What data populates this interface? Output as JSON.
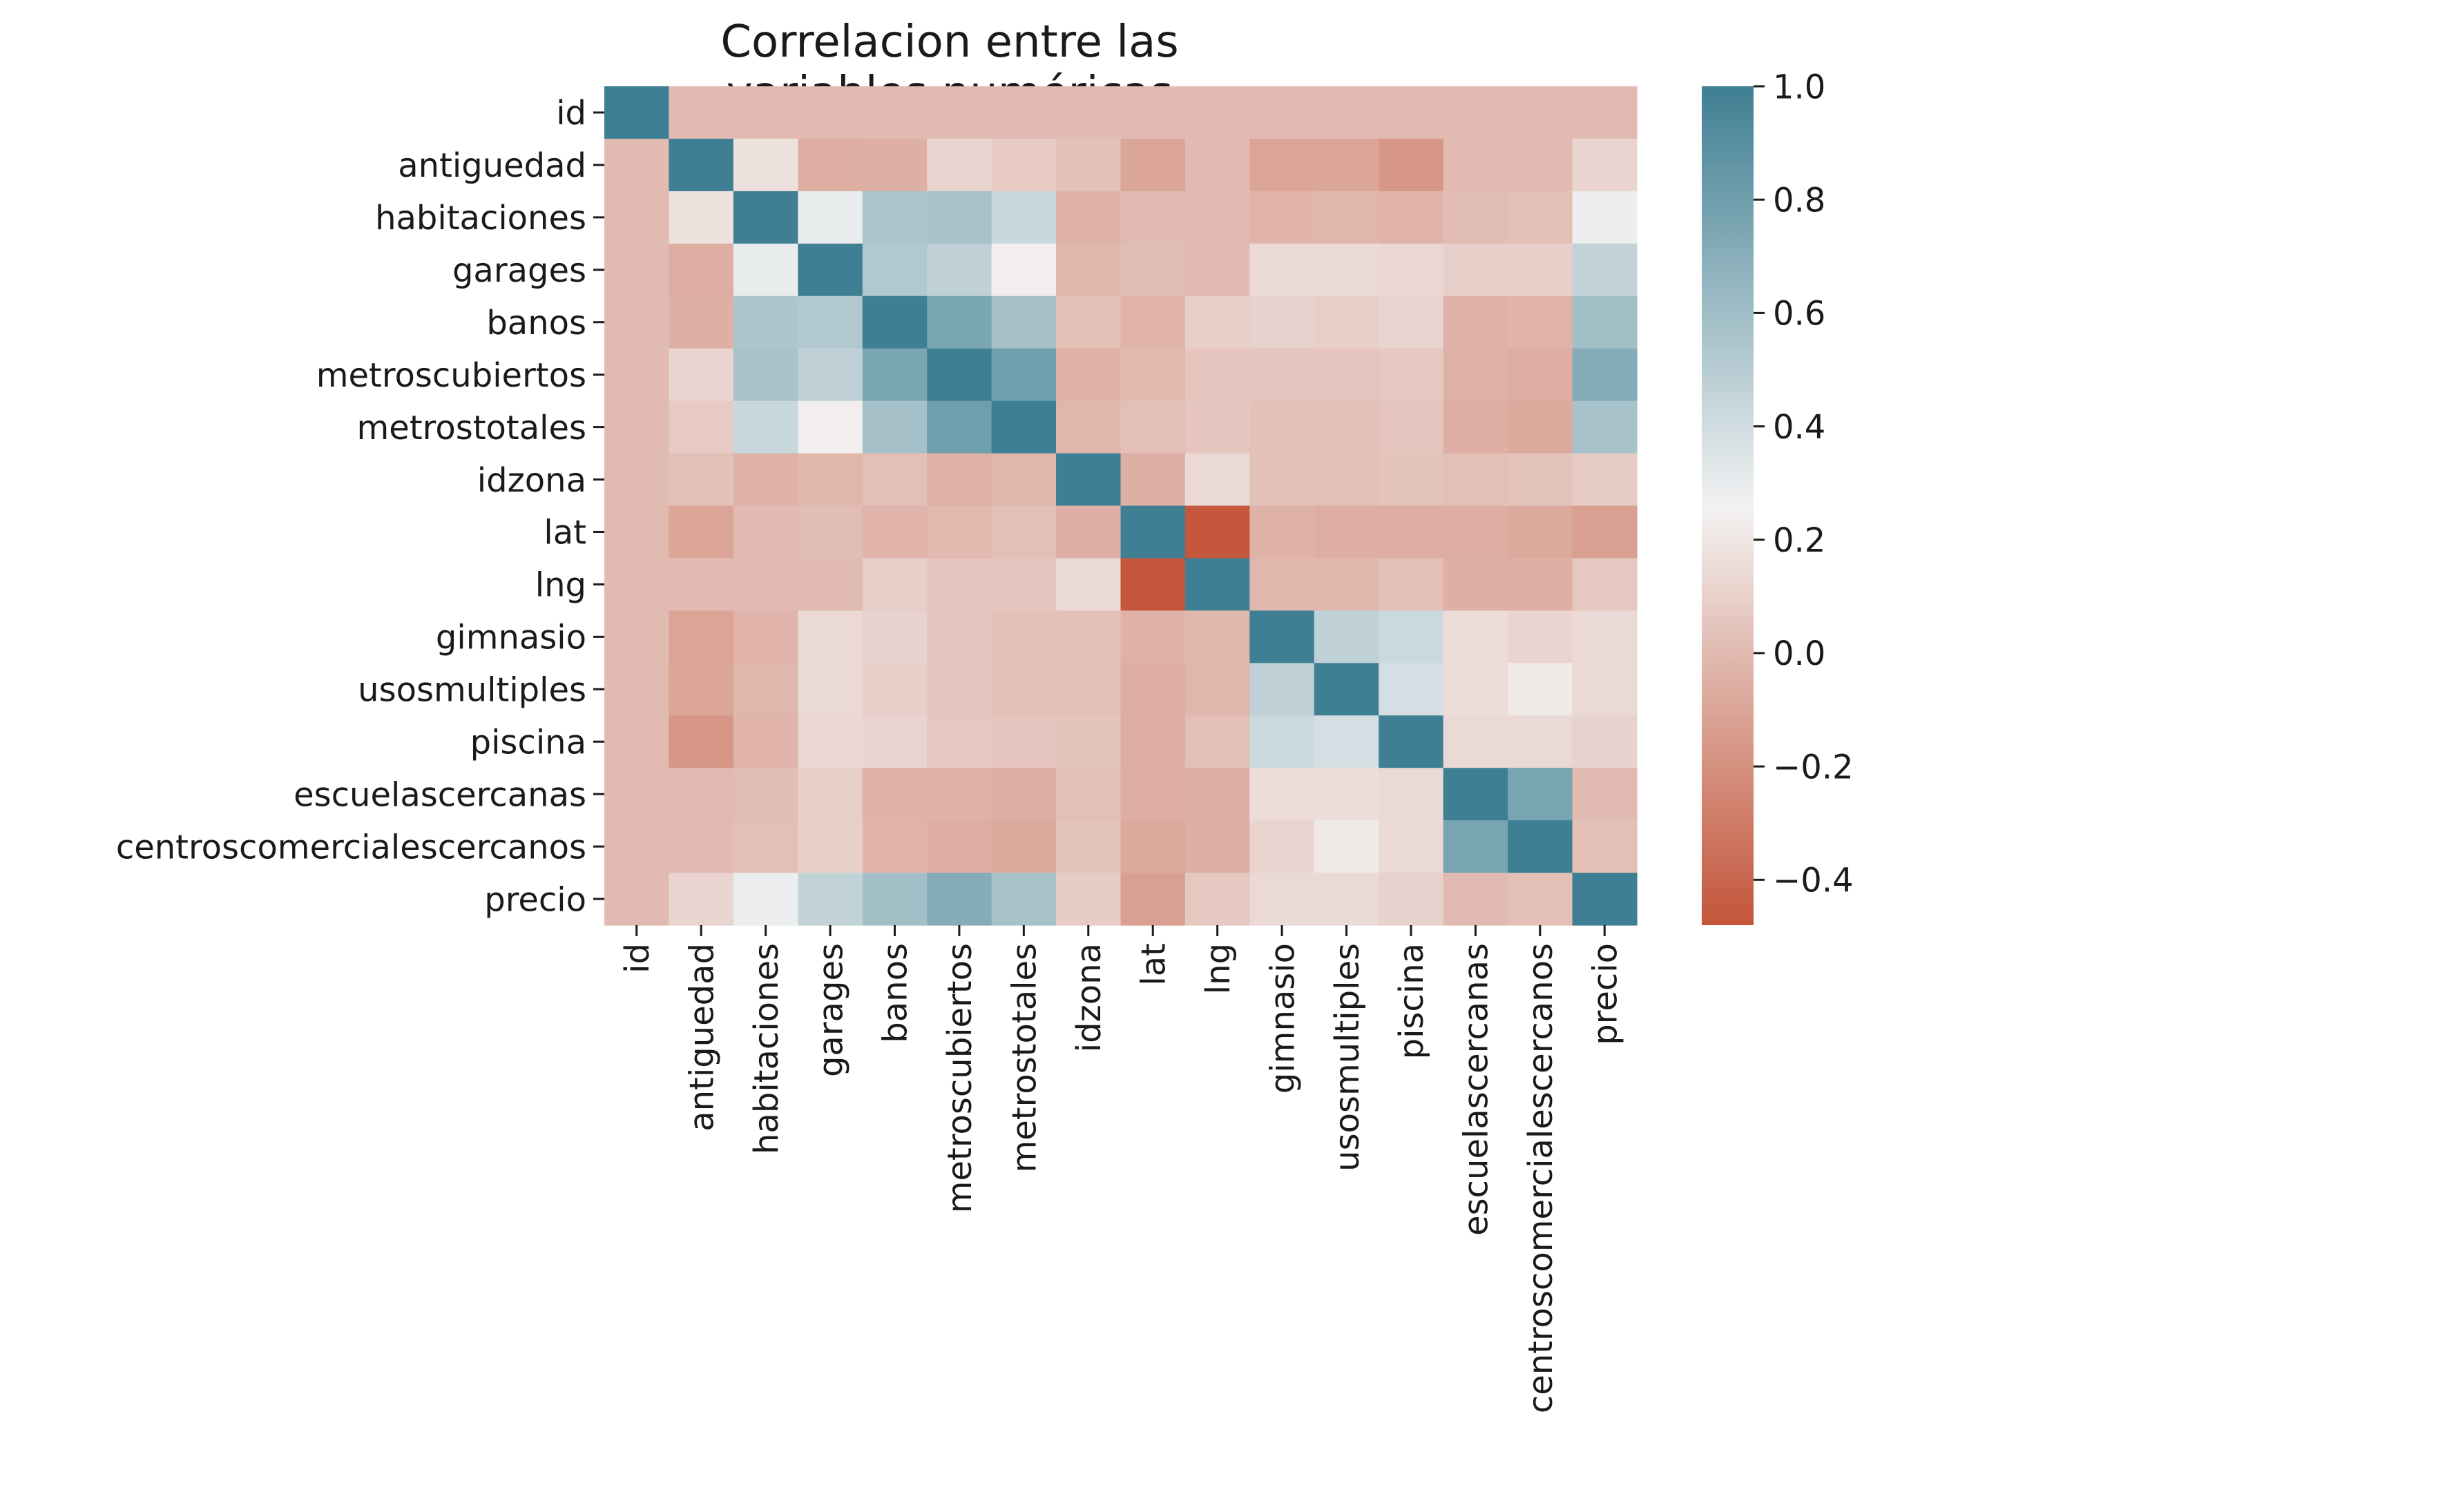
{
  "chart_data": {
    "type": "heatmap",
    "title": "Correlacion entre las variables numéricas",
    "xlabel": "",
    "ylabel": "",
    "labels": [
      "id",
      "antiguedad",
      "habitaciones",
      "garages",
      "banos",
      "metroscubiertos",
      "metrostotales",
      "idzona",
      "lat",
      "lng",
      "gimnasio",
      "usosmultiples",
      "piscina",
      "escuelascercanas",
      "centroscomercialescercanos",
      "precio"
    ],
    "matrix": [
      [
        1.0,
        0.0,
        0.0,
        0.0,
        0.0,
        0.0,
        0.0,
        0.0,
        0.0,
        0.0,
        0.0,
        0.0,
        0.0,
        0.0,
        0.0,
        0.0
      ],
      [
        0.0,
        1.0,
        0.18,
        -0.06,
        -0.05,
        0.12,
        0.07,
        0.03,
        -0.1,
        0.0,
        -0.11,
        -0.1,
        -0.17,
        0.0,
        0.0,
        0.12
      ],
      [
        0.0,
        0.18,
        1.0,
        0.3,
        0.55,
        0.57,
        0.43,
        -0.04,
        0.0,
        0.0,
        -0.03,
        -0.02,
        -0.03,
        0.01,
        0.02,
        0.29
      ],
      [
        0.0,
        -0.06,
        0.3,
        1.0,
        0.53,
        0.47,
        0.24,
        -0.02,
        0.01,
        0.0,
        0.14,
        0.14,
        0.13,
        0.1,
        0.1,
        0.46
      ],
      [
        0.0,
        -0.05,
        0.55,
        0.53,
        1.0,
        0.75,
        0.58,
        0.02,
        -0.03,
        0.09,
        0.11,
        0.09,
        0.12,
        -0.04,
        -0.03,
        0.59
      ],
      [
        0.0,
        0.12,
        0.57,
        0.47,
        0.75,
        1.0,
        0.8,
        -0.04,
        -0.01,
        0.05,
        0.05,
        0.05,
        0.06,
        -0.04,
        -0.06,
        0.71
      ],
      [
        0.0,
        0.07,
        0.43,
        0.24,
        0.58,
        0.8,
        1.0,
        -0.02,
        0.02,
        0.05,
        0.03,
        0.03,
        0.05,
        -0.05,
        -0.08,
        0.57
      ],
      [
        0.0,
        0.03,
        -0.04,
        -0.02,
        0.02,
        -0.04,
        -0.02,
        1.0,
        -0.05,
        0.14,
        0.03,
        0.02,
        0.04,
        0.02,
        0.04,
        0.08
      ],
      [
        0.0,
        -0.1,
        0.0,
        0.01,
        -0.03,
        -0.01,
        0.02,
        -0.05,
        1.0,
        -0.47,
        -0.04,
        -0.06,
        -0.06,
        -0.06,
        -0.08,
        -0.13
      ],
      [
        0.0,
        0.0,
        0.0,
        0.0,
        0.09,
        0.05,
        0.05,
        0.14,
        -0.47,
        1.0,
        -0.02,
        -0.02,
        0.02,
        -0.05,
        -0.05,
        0.06
      ],
      [
        0.0,
        -0.11,
        -0.03,
        0.14,
        0.11,
        0.05,
        0.03,
        0.03,
        -0.04,
        -0.02,
        1.0,
        0.47,
        0.42,
        0.16,
        0.12,
        0.14
      ],
      [
        0.0,
        -0.1,
        -0.02,
        0.14,
        0.09,
        0.05,
        0.03,
        0.02,
        -0.06,
        -0.02,
        0.47,
        1.0,
        0.38,
        0.16,
        0.22,
        0.14
      ],
      [
        0.0,
        -0.17,
        -0.03,
        0.13,
        0.12,
        0.06,
        0.05,
        0.04,
        -0.06,
        0.02,
        0.42,
        0.38,
        1.0,
        0.14,
        0.14,
        0.11
      ],
      [
        0.0,
        0.0,
        0.01,
        0.1,
        -0.04,
        -0.04,
        -0.05,
        0.02,
        -0.06,
        -0.05,
        0.16,
        0.16,
        0.14,
        1.0,
        0.76,
        0.0
      ],
      [
        0.0,
        0.0,
        0.02,
        0.1,
        -0.03,
        -0.06,
        -0.08,
        0.04,
        -0.08,
        -0.05,
        0.12,
        0.22,
        0.14,
        0.76,
        1.0,
        0.02
      ],
      [
        0.0,
        0.12,
        0.29,
        0.46,
        0.59,
        0.71,
        0.57,
        0.08,
        -0.13,
        0.06,
        0.14,
        0.14,
        0.11,
        0.0,
        0.02,
        1.0
      ]
    ],
    "vmin": -0.48,
    "vmax": 1.0,
    "colorbar_ticks": [
      1.0,
      0.8,
      0.6,
      0.4,
      0.2,
      0.0,
      -0.2,
      -0.4
    ],
    "colorbar_tick_labels": [
      "1.0",
      "0.8",
      "0.6",
      "0.4",
      "0.2",
      "0.0",
      "−0.2",
      "−0.4"
    ],
    "colormap": {
      "low": "#c3553a",
      "mid": "#f2f2f2",
      "high": "#3f7f93",
      "mid_value": 0.26
    }
  }
}
